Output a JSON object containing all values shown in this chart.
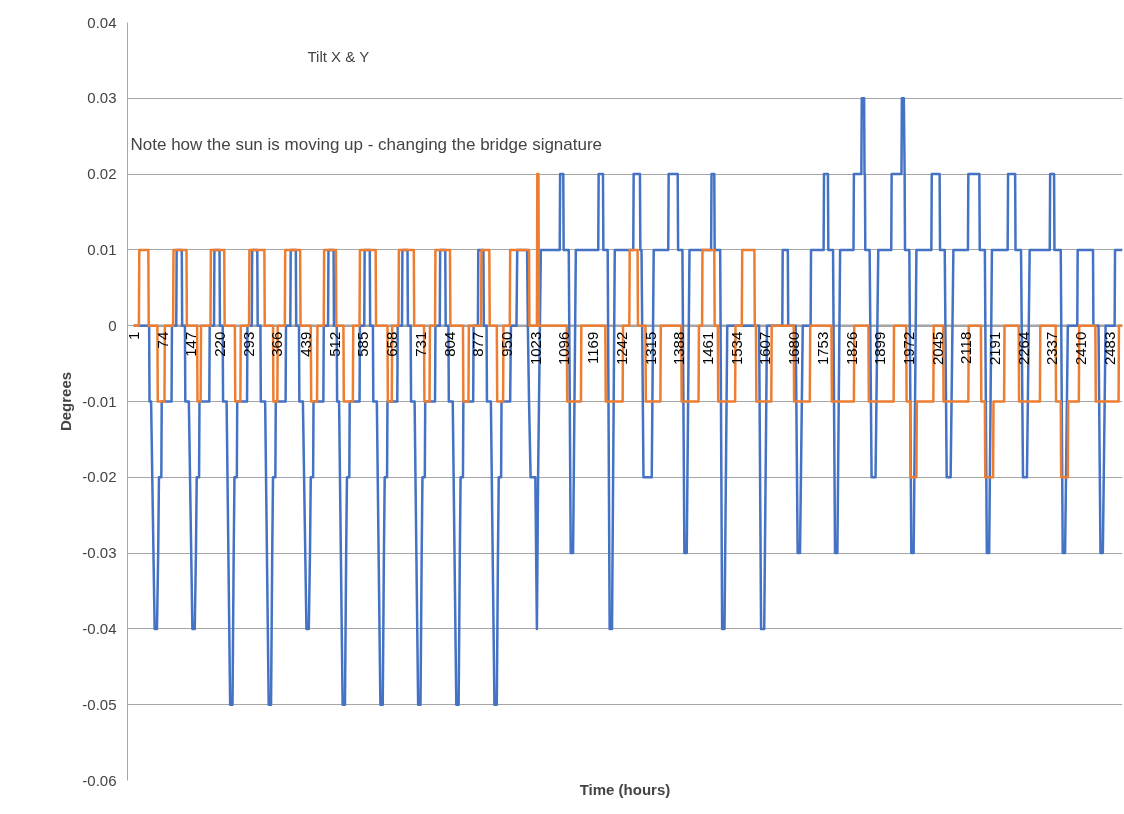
{
  "chart_data": {
    "type": "line",
    "title": "Tilt X & Y",
    "xlabel": "Time (hours)",
    "ylabel": "Degrees",
    "annotations": [
      "Note how the sun is moving up  - changing the bridge signature"
    ],
    "xlim": [
      -15,
      2515
    ],
    "ylim": [
      -0.06,
      0.04
    ],
    "xticks": [
      1,
      74,
      147,
      220,
      293,
      366,
      439,
      512,
      585,
      658,
      731,
      804,
      877,
      950,
      1023,
      1096,
      1169,
      1242,
      1315,
      1388,
      1461,
      1534,
      1607,
      1680,
      1753,
      1826,
      1899,
      1972,
      2045,
      2118,
      2191,
      2264,
      2337,
      2410,
      2483
    ],
    "yticks": [
      -0.06,
      -0.05,
      -0.04,
      -0.03,
      -0.02,
      -0.01,
      0,
      0.01,
      0.02,
      0.03,
      0.04
    ],
    "grid": "y",
    "series": [
      {
        "color": "#a5a5a5",
        "x": [
          1,
          2515
        ],
        "values": [
          0,
          0
        ]
      },
      {
        "color": "#4472c4",
        "x": [
          1,
          40,
          41,
          45,
          54,
          60,
          63,
          65,
          71,
          72,
          97,
          98,
          109,
          110,
          123,
          124,
          131,
          132,
          141,
          150,
          156,
          159,
          161,
          167,
          168,
          193,
          194,
          205,
          206,
          219,
          220,
          227,
          228,
          237,
          246,
          252,
          255,
          257,
          263,
          264,
          289,
          290,
          301,
          302,
          315,
          316,
          323,
          324,
          335,
          344,
          350,
          353,
          355,
          361,
          362,
          387,
          388,
          399,
          400,
          413,
          414,
          421,
          422,
          431,
          440,
          446,
          449,
          451,
          457,
          458,
          483,
          484,
          495,
          496,
          509,
          510,
          517,
          518,
          523,
          532,
          538,
          541,
          543,
          549,
          550,
          575,
          576,
          587,
          588,
          601,
          602,
          609,
          610,
          619,
          628,
          634,
          637,
          639,
          645,
          646,
          671,
          672,
          683,
          684,
          697,
          698,
          705,
          706,
          715,
          724,
          730,
          733,
          735,
          741,
          742,
          767,
          768,
          779,
          780,
          793,
          794,
          801,
          802,
          812,
          821,
          827,
          830,
          832,
          838,
          839,
          864,
          865,
          876,
          877,
          890,
          891,
          898,
          899,
          909,
          918,
          924,
          927,
          929,
          935,
          936,
          958,
          960,
          974,
          976,
          1001,
          1003,
          1006,
          1010,
          1022,
          1026,
          1029,
          1036,
          1084,
          1085,
          1093,
          1094,
          1107,
          1112,
          1118,
          1125,
          1182,
          1183,
          1194,
          1195,
          1206,
          1211,
          1217,
          1224,
          1271,
          1272,
          1288,
          1289,
          1292,
          1297,
          1318,
          1323,
          1360,
          1361,
          1384,
          1385,
          1396,
          1401,
          1407,
          1414,
          1469,
          1470,
          1477,
          1478,
          1492,
          1497,
          1503,
          1510,
          1591,
          1596,
          1604,
          1611,
          1650,
          1651,
          1664,
          1665,
          1684,
          1689,
          1695,
          1702,
          1722,
          1723,
          1755,
          1756,
          1766,
          1767,
          1779,
          1784,
          1790,
          1797,
          1831,
          1832,
          1851,
          1852,
          1858,
          1859,
          1860,
          1861,
          1872,
          1877,
          1887,
          1894,
          1927,
          1928,
          1953,
          1954,
          1959,
          1961,
          1962,
          1973,
          1978,
          1984,
          1991,
          2029,
          2030,
          2050,
          2051,
          2063,
          2068,
          2078,
          2085,
          2122,
          2123,
          2151,
          2152,
          2165,
          2170,
          2176,
          2183,
          2223,
          2224,
          2242,
          2243,
          2257,
          2262,
          2272,
          2279,
          2330,
          2331,
          2341,
          2342,
          2358,
          2363,
          2369,
          2376,
          2400,
          2401,
          2440,
          2441,
          2454,
          2459,
          2465,
          2472,
          2495,
          2496,
          2515
        ],
        "values": [
          0,
          0,
          -0.01,
          -0.01,
          -0.04,
          -0.04,
          -0.03,
          -0.02,
          -0.02,
          -0.01,
          -0.01,
          0,
          0,
          0.01,
          0.01,
          0,
          0,
          -0.01,
          -0.01,
          -0.04,
          -0.04,
          -0.03,
          -0.02,
          -0.02,
          -0.01,
          -0.01,
          0,
          0,
          0.01,
          0.01,
          0,
          0,
          -0.01,
          -0.01,
          -0.05,
          -0.05,
          -0.03,
          -0.02,
          -0.02,
          -0.01,
          -0.01,
          0,
          0,
          0.01,
          0.01,
          0,
          0,
          -0.01,
          -0.01,
          -0.05,
          -0.05,
          -0.03,
          -0.02,
          -0.02,
          -0.01,
          -0.01,
          0,
          0,
          0.01,
          0.01,
          0,
          0,
          -0.01,
          -0.01,
          -0.04,
          -0.04,
          -0.03,
          -0.02,
          -0.02,
          -0.01,
          -0.01,
          0,
          0,
          0.01,
          0.01,
          0,
          0,
          -0.01,
          -0.01,
          -0.05,
          -0.05,
          -0.03,
          -0.02,
          -0.02,
          -0.01,
          -0.01,
          0,
          0,
          0.01,
          0.01,
          0,
          0,
          -0.01,
          -0.01,
          -0.05,
          -0.05,
          -0.03,
          -0.02,
          -0.02,
          -0.01,
          -0.01,
          0,
          0,
          0.01,
          0.01,
          0,
          0,
          -0.01,
          -0.01,
          -0.05,
          -0.05,
          -0.03,
          -0.02,
          -0.02,
          -0.01,
          -0.01,
          0,
          0,
          0.01,
          0.01,
          0,
          0,
          -0.01,
          -0.01,
          -0.05,
          -0.05,
          -0.03,
          -0.02,
          -0.02,
          -0.01,
          -0.01,
          0,
          0,
          0.01,
          0.01,
          0,
          0,
          -0.01,
          -0.01,
          -0.05,
          -0.05,
          -0.03,
          -0.02,
          -0.02,
          -0.01,
          -0.01,
          0,
          0,
          0.01,
          0.01,
          0,
          -0.01,
          -0.02,
          -0.02,
          -0.04,
          -0.02,
          0.01,
          0.01,
          0.02,
          0.02,
          0.01,
          0.01,
          -0.03,
          -0.03,
          0.01,
          0.01,
          0.02,
          0.02,
          0.01,
          0.01,
          -0.04,
          -0.04,
          0.01,
          0.01,
          0.02,
          0.02,
          0.01,
          0.01,
          -0.02,
          -0.02,
          0.01,
          0.01,
          0.02,
          0.02,
          0.01,
          0.01,
          -0.03,
          -0.03,
          0.01,
          0.01,
          0.02,
          0.02,
          0.01,
          0.01,
          -0.04,
          -0.04,
          0,
          0,
          -0.04,
          -0.04,
          0,
          0,
          0.01,
          0.01,
          0,
          0,
          -0.03,
          -0.03,
          0,
          0,
          0.01,
          0.01,
          0.02,
          0.02,
          0.01,
          0.01,
          -0.03,
          -0.03,
          0.01,
          0.01,
          0.02,
          0.02,
          0.03,
          0.03,
          0.02,
          0.02,
          0.01,
          0.01,
          -0.02,
          -0.02,
          0.01,
          0.01,
          0.02,
          0.02,
          0.03,
          0.03,
          0.02,
          0.01,
          0.01,
          -0.03,
          -0.03,
          0.01,
          0.01,
          0.02,
          0.02,
          0.01,
          0.01,
          -0.02,
          -0.02,
          0.01,
          0.01,
          0.02,
          0.02,
          0.01,
          0.01,
          -0.03,
          -0.03,
          0.01,
          0.01,
          0.02,
          0.02,
          0.01,
          0.01,
          -0.02,
          -0.02,
          0.01,
          0.01,
          0.02,
          0.02,
          0.01,
          0.01,
          -0.03,
          -0.03,
          0,
          0,
          0.01,
          0.01,
          0,
          0,
          -0.03,
          -0.03,
          0,
          0,
          0.01,
          0.01
        ]
      },
      {
        "color": "#ed7d31",
        "x": [
          1,
          14,
          15,
          38,
          39,
          61,
          62,
          79,
          80,
          101,
          102,
          135,
          136,
          162,
          163,
          171,
          172,
          196,
          197,
          231,
          232,
          258,
          259,
          272,
          273,
          294,
          295,
          333,
          334,
          355,
          356,
          366,
          367,
          385,
          386,
          424,
          425,
          451,
          452,
          467,
          468,
          484,
          485,
          515,
          516,
          534,
          535,
          558,
          559,
          575,
          576,
          616,
          617,
          646,
          647,
          657,
          658,
          674,
          675,
          713,
          714,
          739,
          740,
          753,
          754,
          767,
          768,
          805,
          806,
          838,
          839,
          852,
          853,
          884,
          885,
          905,
          906,
          924,
          925,
          940,
          941,
          957,
          958,
          1006,
          1007,
          1026,
          1027,
          1030,
          1031,
          1102,
          1103,
          1138,
          1139,
          1200,
          1201,
          1244,
          1245,
          1261,
          1262,
          1282,
          1283,
          1302,
          1303,
          1340,
          1341,
          1393,
          1394,
          1437,
          1438,
          1446,
          1447,
          1477,
          1478,
          1486,
          1487,
          1530,
          1531,
          1547,
          1548,
          1579,
          1580,
          1583,
          1584,
          1622,
          1623,
          1679,
          1680,
          1720,
          1721,
          1775,
          1776,
          1832,
          1833,
          1869,
          1870,
          1933,
          1934,
          1965,
          1966,
          1975,
          1976,
          1991,
          1992,
          2034,
          2035,
          2059,
          2060,
          2123,
          2124,
          2155,
          2156,
          2165,
          2166,
          2186,
          2187,
          2214,
          2215,
          2251,
          2252,
          2305,
          2306,
          2345,
          2346,
          2358,
          2359,
          2376,
          2377,
          2404,
          2405,
          2446,
          2447,
          2505,
          2506,
          2515
        ],
        "values": [
          0,
          0,
          0.01,
          0.01,
          0,
          0,
          -0.01,
          -0.01,
          0,
          0,
          0.01,
          0.01,
          0,
          0,
          -0.01,
          -0.01,
          0,
          0,
          0.01,
          0.01,
          0,
          0,
          -0.01,
          -0.01,
          0,
          0,
          0.01,
          0.01,
          0,
          0,
          -0.01,
          -0.01,
          0,
          0,
          0.01,
          0.01,
          0,
          0,
          -0.01,
          -0.01,
          0,
          0,
          0.01,
          0.01,
          0,
          0,
          -0.01,
          -0.01,
          0,
          0,
          0.01,
          0.01,
          0,
          0,
          -0.01,
          -0.01,
          0,
          0,
          0.01,
          0.01,
          0,
          0,
          -0.01,
          -0.01,
          0,
          0,
          0.01,
          0.01,
          0,
          0,
          -0.01,
          -0.01,
          0,
          0,
          0.01,
          0.01,
          0,
          0,
          -0.01,
          -0.01,
          0,
          0,
          0.01,
          0.01,
          0,
          0,
          0.02,
          0.02,
          0,
          0,
          -0.01,
          -0.01,
          0,
          0,
          -0.01,
          -0.01,
          0,
          0,
          0.01,
          0.01,
          0,
          0,
          -0.01,
          -0.01,
          0,
          0,
          -0.01,
          -0.01,
          0,
          0,
          0.01,
          0.01,
          0,
          0,
          -0.01,
          -0.01,
          0,
          0,
          0.01,
          0.01,
          0,
          0,
          -0.01,
          -0.01,
          0,
          0,
          -0.01,
          -0.01,
          0,
          0,
          -0.01,
          -0.01,
          0,
          0,
          -0.01,
          -0.01,
          0,
          0,
          -0.01,
          -0.01,
          -0.02,
          -0.02,
          -0.01,
          -0.01,
          0,
          0,
          -0.01,
          -0.01,
          0,
          0,
          -0.01,
          -0.01,
          -0.02,
          -0.02,
          -0.01,
          -0.01,
          0,
          0,
          -0.01,
          -0.01,
          0,
          0,
          -0.01,
          -0.01,
          -0.02,
          -0.02,
          -0.01,
          -0.01,
          0,
          0,
          -0.01,
          -0.01,
          0,
          0
        ]
      }
    ]
  }
}
